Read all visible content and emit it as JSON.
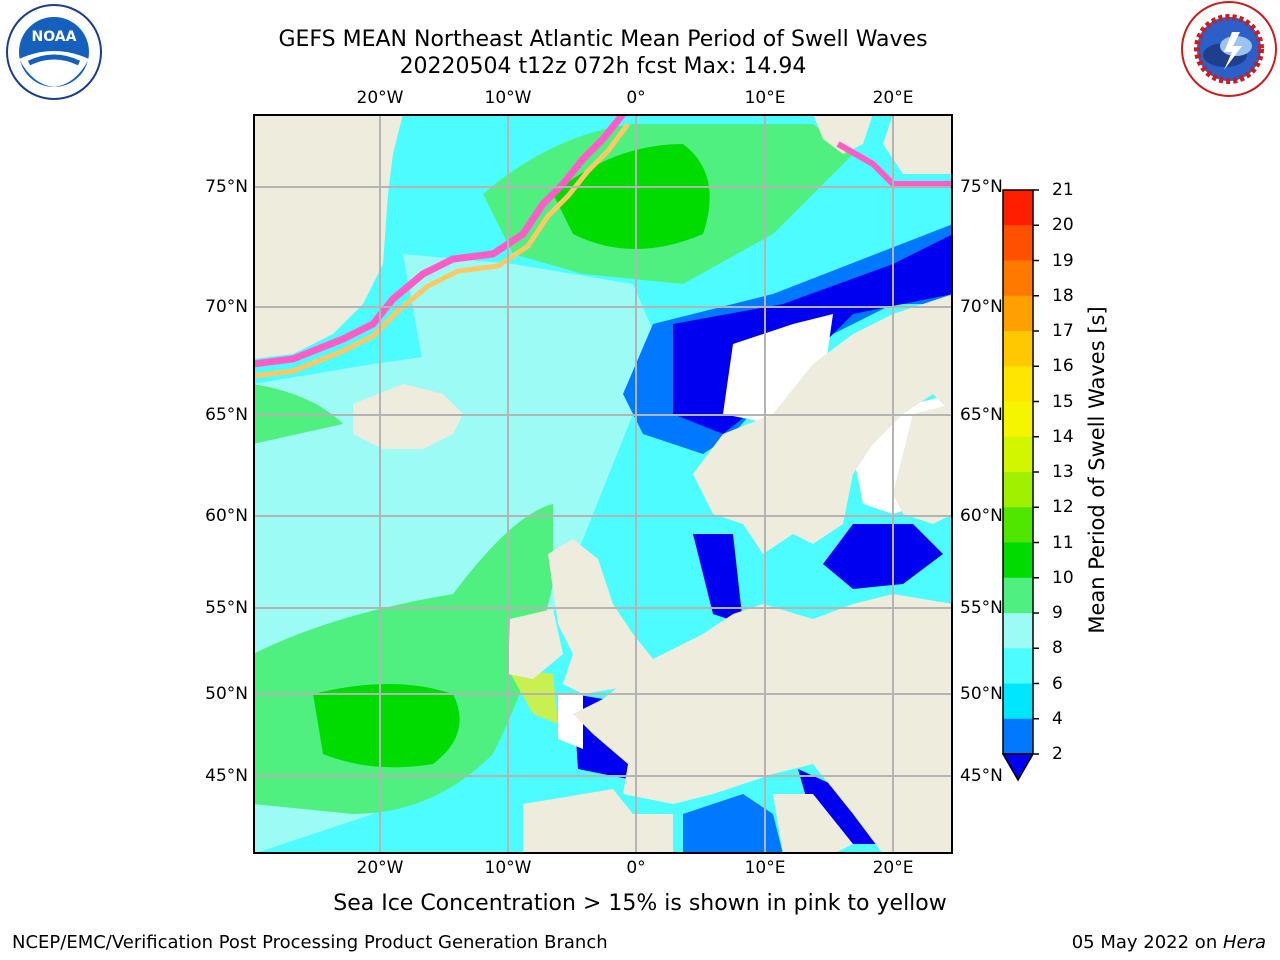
{
  "header": {
    "title_line1": "GEFS MEAN Northeast Atlantic Mean Period of Swell Waves",
    "title_line2": "20220504 t12z 072h fcst   Max: 14.94"
  },
  "map": {
    "lon_labels": [
      "20°W",
      "10°W",
      "0°",
      "10°E",
      "20°E"
    ],
    "lat_labels": [
      "75°N",
      "70°N",
      "65°N",
      "60°N",
      "55°N",
      "50°N",
      "45°N"
    ],
    "extent": {
      "lon": [
        -30,
        25
      ],
      "lat": [
        41,
        78
      ]
    },
    "land_color": "#eeecdc",
    "ocean_base_color": "#4cfcff",
    "grid_color": "#b4b4b4"
  },
  "colorbar": {
    "label": "Mean Period of Swell Waves [s]",
    "ticks": [
      "2",
      "4",
      "6",
      "8",
      "9",
      "10",
      "11",
      "12",
      "13",
      "14",
      "15",
      "16",
      "17",
      "18",
      "19",
      "20",
      "21"
    ],
    "colors": [
      "#0000f0",
      "#0078ff",
      "#00e6ff",
      "#4cfcff",
      "#9cfcf5",
      "#50f080",
      "#00dc00",
      "#50e600",
      "#a0f000",
      "#d2f500",
      "#f5f500",
      "#ffe600",
      "#ffc800",
      "#ffa000",
      "#ff7800",
      "#ff5000",
      "#ff1e00"
    ]
  },
  "footer": {
    "note": "Sea Ice Concentration > 15% is shown in pink to yellow",
    "credit": "NCEP/EMC/Verification Post Processing Product Generation Branch",
    "date": "05 May 2022 on ",
    "host": "Hera"
  },
  "logos": {
    "left": "noaa-logo",
    "right": "national-weather-service-logo"
  }
}
